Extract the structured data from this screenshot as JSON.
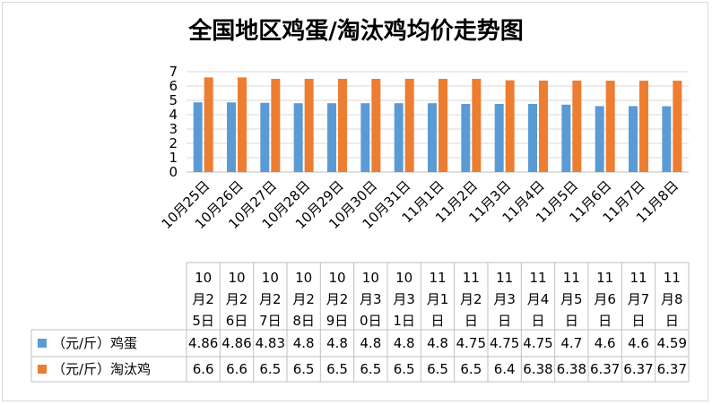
{
  "chart_data": {
    "type": "bar",
    "title": "全国地区鸡蛋/淘汰鸡均价走势图",
    "categories": [
      "10月25日",
      "10月26日",
      "10月27日",
      "10月28日",
      "10月29日",
      "10月30日",
      "10月31日",
      "11月1日",
      "11月2日",
      "11月3日",
      "11月4日",
      "11月5日",
      "11月6日",
      "11月7日",
      "11月8日"
    ],
    "series": [
      {
        "name": "（元/斤）鸡蛋",
        "color": "#5b9bd5",
        "values": [
          4.86,
          4.86,
          4.83,
          4.8,
          4.8,
          4.8,
          4.8,
          4.8,
          4.75,
          4.75,
          4.75,
          4.7,
          4.6,
          4.6,
          4.59
        ]
      },
      {
        "name": "（元/斤）淘汰鸡",
        "color": "#ed7d31",
        "values": [
          6.6,
          6.6,
          6.5,
          6.5,
          6.5,
          6.5,
          6.5,
          6.5,
          6.5,
          6.4,
          6.38,
          6.38,
          6.37,
          6.37,
          6.37
        ]
      }
    ],
    "ylim": [
      0,
      7
    ],
    "yticks": [
      0,
      1,
      2,
      3,
      4,
      5,
      6,
      7
    ],
    "grid": true,
    "legend": "data-table"
  }
}
